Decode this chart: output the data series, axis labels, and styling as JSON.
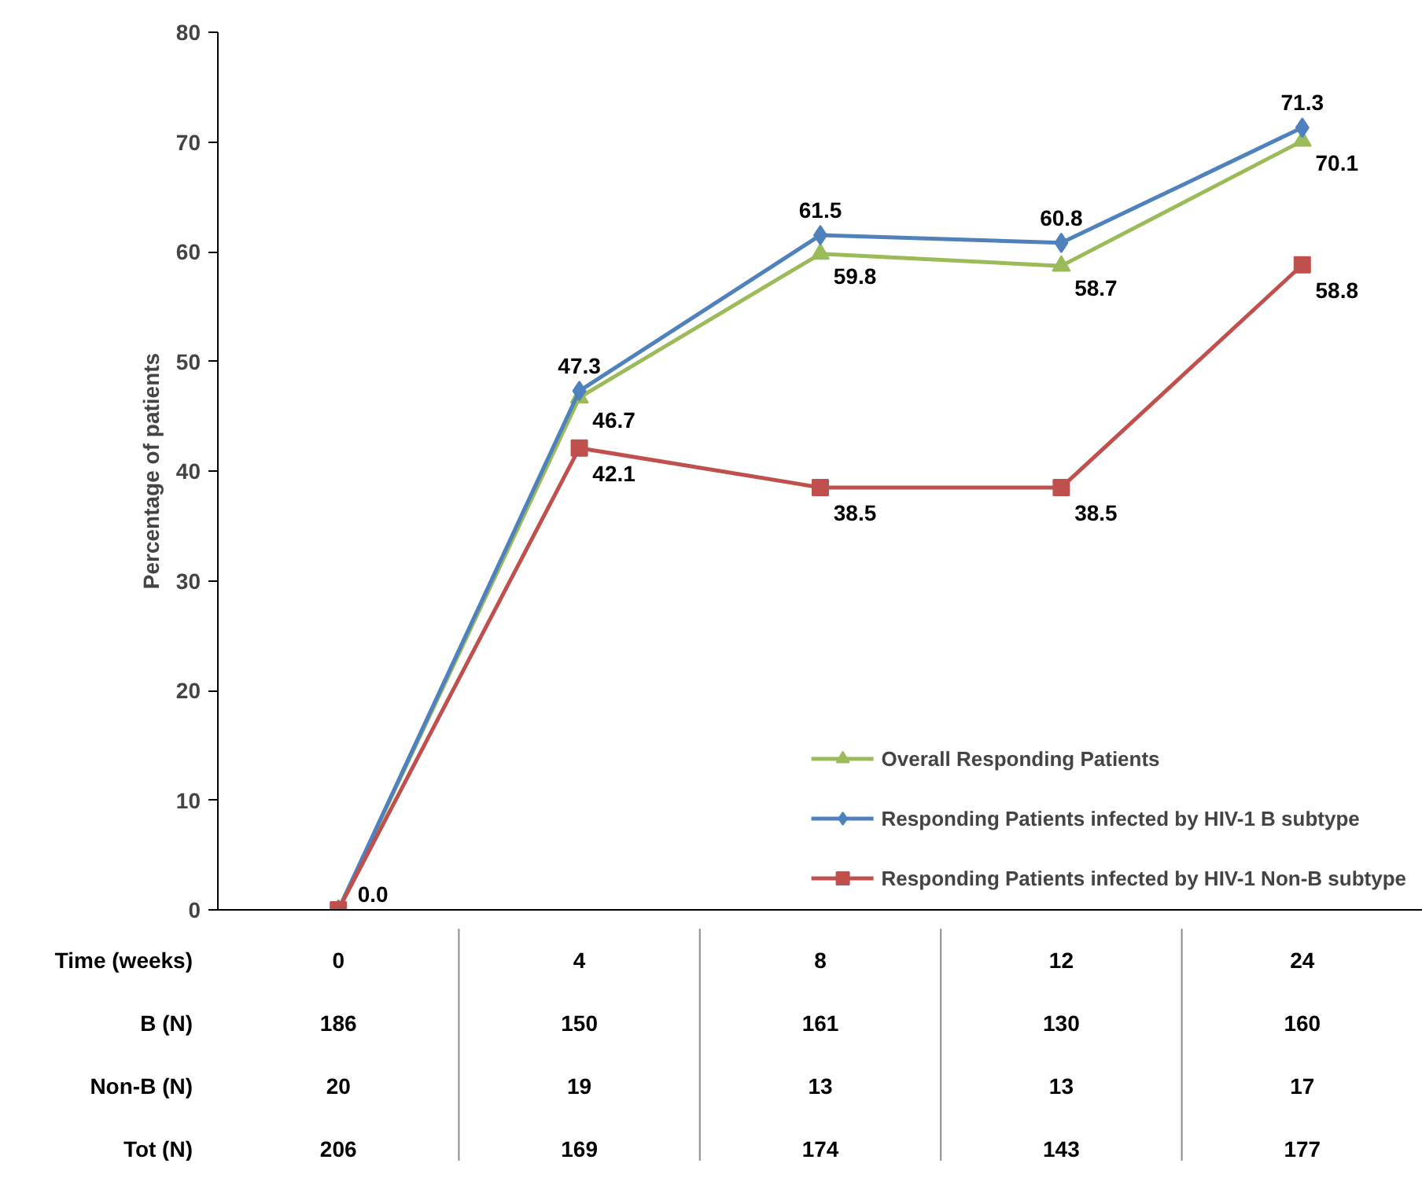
{
  "chart_data": {
    "type": "line",
    "ylabel": "Percentage of patients",
    "categories": [
      "0",
      "4",
      "8",
      "12",
      "24"
    ],
    "series": [
      {
        "name": "Overall Responding Patients",
        "color": "#9bbb59",
        "marker": "triangle",
        "values": [
          0,
          46.7,
          59.8,
          58.7,
          70.1
        ],
        "value_labels": [
          null,
          "46.7",
          "59.8",
          "58.7",
          "70.1"
        ]
      },
      {
        "name": "Responding Patients infected by HIV-1 B subtype",
        "color": "#4f81bd",
        "marker": "diamond",
        "values": [
          0,
          47.3,
          61.5,
          60.8,
          71.3
        ],
        "value_labels": [
          null,
          "47.3",
          "61.5",
          "60.8",
          "71.3"
        ]
      },
      {
        "name": "Responding Patients infected by HIV-1 Non-B subtype",
        "color": "#c0504d",
        "marker": "square",
        "values": [
          0,
          42.1,
          38.5,
          38.5,
          58.8
        ],
        "value_labels": [
          "0.0",
          "42.1",
          "38.5",
          "38.5",
          "58.8"
        ]
      }
    ],
    "ylim": [
      0,
      80
    ],
    "yticks": [
      0,
      10,
      20,
      30,
      40,
      50,
      60,
      70,
      80
    ],
    "grid": false,
    "legend": "bottom right",
    "tick_labels": "y",
    "annotations": [
      "Time (weeks)",
      "B (N)",
      "186",
      "150",
      "161",
      "130",
      "160",
      "Non-B (N)",
      "20",
      "19",
      "13",
      "13",
      "17",
      "Tot (N)",
      "206",
      "169",
      "174",
      "143",
      "177"
    ]
  }
}
